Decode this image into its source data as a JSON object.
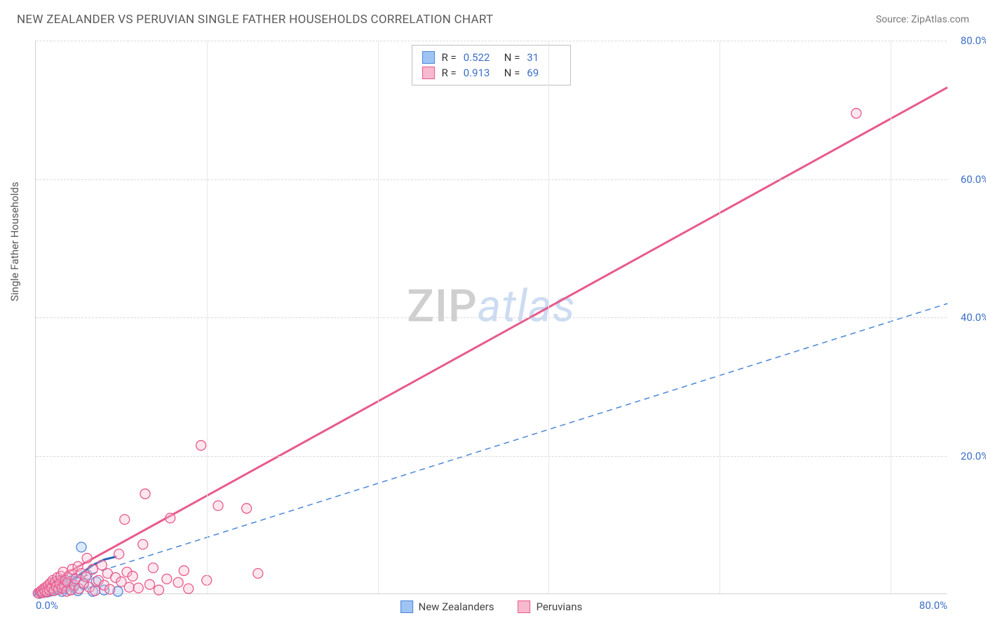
{
  "header": {
    "title": "NEW ZEALANDER VS PERUVIAN SINGLE FATHER HOUSEHOLDS CORRELATION CHART",
    "source": "Source: ZipAtlas.com"
  },
  "chart": {
    "type": "scatter",
    "y_axis_label": "Single Father Households",
    "background_color": "#ffffff",
    "grid_color": "#d8d8d8",
    "axis_color": "#d0d0d0",
    "tick_label_color": "#3b6fc9",
    "tick_fontsize": 15,
    "axis_label_color": "#5a5a5a",
    "xlim": [
      0,
      80
    ],
    "ylim": [
      0,
      80
    ],
    "x_ticks": [
      {
        "value": 0,
        "label": "0.0%",
        "align": "left"
      },
      {
        "value": 80,
        "label": "80.0%",
        "align": "right"
      }
    ],
    "y_ticks": [
      {
        "value": 20,
        "label": "20.0%"
      },
      {
        "value": 40,
        "label": "40.0%"
      },
      {
        "value": 60,
        "label": "60.0%"
      },
      {
        "value": 80,
        "label": "80.0%"
      }
    ],
    "x_gridlines": [
      15,
      30,
      45,
      60,
      75
    ],
    "marker_radius": 7,
    "marker_opacity": 0.35,
    "series": [
      {
        "name": "New Zealanders",
        "color_fill": "#9ec4f4",
        "color_stroke": "#4a86d8",
        "r_stat": "0.522",
        "n_stat": "31",
        "trend": {
          "style": "dashed",
          "color": "#4a86d8",
          "width": 1.5,
          "y_intercept": 0.4,
          "slope": 0.52
        },
        "curve": {
          "color": "#2b62b8",
          "width": 3,
          "points": [
            [
              0,
              0
            ],
            [
              1,
              0.3
            ],
            [
              2,
              0.8
            ],
            [
              3,
              1.8
            ],
            [
              4,
              3.0
            ],
            [
              5,
              4.2
            ],
            [
              6,
              5.0
            ],
            [
              7,
              5.4
            ]
          ]
        },
        "points": [
          [
            0.3,
            0.1
          ],
          [
            0.5,
            0.2
          ],
          [
            0.7,
            0.25
          ],
          [
            0.8,
            0.6
          ],
          [
            1.0,
            0.3
          ],
          [
            1.1,
            0.9
          ],
          [
            1.2,
            0.4
          ],
          [
            1.4,
            1.1
          ],
          [
            1.5,
            0.5
          ],
          [
            1.6,
            1.6
          ],
          [
            1.8,
            0.7
          ],
          [
            1.9,
            1.3
          ],
          [
            2.0,
            0.9
          ],
          [
            2.1,
            2.0
          ],
          [
            2.3,
            0.4
          ],
          [
            2.4,
            1.7
          ],
          [
            2.5,
            0.8
          ],
          [
            2.7,
            1.2
          ],
          [
            2.8,
            2.4
          ],
          [
            3.0,
            0.6
          ],
          [
            3.1,
            1.9
          ],
          [
            3.3,
            1.0
          ],
          [
            3.5,
            2.2
          ],
          [
            3.7,
            0.5
          ],
          [
            4.0,
            6.8
          ],
          [
            4.2,
            1.4
          ],
          [
            4.5,
            2.8
          ],
          [
            5.0,
            0.4
          ],
          [
            5.3,
            1.8
          ],
          [
            6.0,
            0.6
          ],
          [
            7.2,
            0.4
          ]
        ]
      },
      {
        "name": "Peruvians",
        "color_fill": "#f7b9ce",
        "color_stroke": "#e75a8d",
        "r_stat": "0.913",
        "n_stat": "69",
        "trend": {
          "style": "solid",
          "color": "#e75a8d",
          "width": 3,
          "y_intercept": 0.6,
          "slope": 0.908
        },
        "points": [
          [
            0.2,
            0.15
          ],
          [
            0.4,
            0.3
          ],
          [
            0.5,
            0.5
          ],
          [
            0.6,
            0.2
          ],
          [
            0.7,
            0.8
          ],
          [
            0.8,
            0.4
          ],
          [
            0.9,
            1.0
          ],
          [
            1.0,
            0.35
          ],
          [
            1.1,
            1.3
          ],
          [
            1.2,
            0.6
          ],
          [
            1.3,
            1.6
          ],
          [
            1.4,
            0.9
          ],
          [
            1.5,
            2.0
          ],
          [
            1.6,
            0.5
          ],
          [
            1.7,
            1.8
          ],
          [
            1.8,
            1.1
          ],
          [
            1.9,
            2.4
          ],
          [
            2.0,
            0.7
          ],
          [
            2.1,
            1.5
          ],
          [
            2.2,
            2.6
          ],
          [
            2.3,
            0.9
          ],
          [
            2.4,
            3.2
          ],
          [
            2.5,
            1.2
          ],
          [
            2.6,
            2.0
          ],
          [
            2.7,
            0.4
          ],
          [
            2.8,
            1.7
          ],
          [
            3.0,
            2.8
          ],
          [
            3.1,
            0.6
          ],
          [
            3.2,
            3.6
          ],
          [
            3.4,
            1.3
          ],
          [
            3.5,
            2.2
          ],
          [
            3.7,
            4.0
          ],
          [
            3.8,
            0.8
          ],
          [
            4.0,
            3.0
          ],
          [
            4.2,
            1.6
          ],
          [
            4.4,
            2.5
          ],
          [
            4.5,
            5.2
          ],
          [
            4.7,
            1.0
          ],
          [
            5.0,
            3.6
          ],
          [
            5.2,
            0.5
          ],
          [
            5.5,
            2.0
          ],
          [
            5.8,
            4.2
          ],
          [
            6.0,
            1.3
          ],
          [
            6.3,
            3.0
          ],
          [
            6.5,
            0.7
          ],
          [
            7.0,
            2.4
          ],
          [
            7.3,
            5.8
          ],
          [
            7.5,
            1.8
          ],
          [
            7.8,
            10.8
          ],
          [
            8.0,
            3.2
          ],
          [
            8.2,
            1.0
          ],
          [
            8.5,
            2.6
          ],
          [
            9.0,
            0.9
          ],
          [
            9.4,
            7.2
          ],
          [
            9.6,
            14.5
          ],
          [
            10.0,
            1.4
          ],
          [
            10.3,
            3.8
          ],
          [
            10.8,
            0.6
          ],
          [
            11.5,
            2.2
          ],
          [
            11.8,
            11.0
          ],
          [
            12.5,
            1.7
          ],
          [
            13.0,
            3.4
          ],
          [
            13.4,
            0.8
          ],
          [
            14.5,
            21.5
          ],
          [
            15.0,
            2.0
          ],
          [
            16.0,
            12.8
          ],
          [
            18.5,
            12.4
          ],
          [
            19.5,
            3.0
          ],
          [
            72.0,
            69.5
          ]
        ]
      }
    ],
    "legend_bottom": [
      {
        "label": "New Zealanders",
        "fill": "#9ec4f4",
        "stroke": "#4a86d8"
      },
      {
        "label": "Peruvians",
        "fill": "#f7b9ce",
        "stroke": "#e75a8d"
      }
    ],
    "stats_box": {
      "rows": [
        {
          "swatch_fill": "#9ec4f4",
          "swatch_stroke": "#4a86d8",
          "r": "0.522",
          "n": "31"
        },
        {
          "swatch_fill": "#f7b9ce",
          "swatch_stroke": "#e75a8d",
          "r": "0.913",
          "n": "69"
        }
      ]
    },
    "watermark": {
      "zip": "ZIP",
      "atlas": "atlas"
    }
  }
}
